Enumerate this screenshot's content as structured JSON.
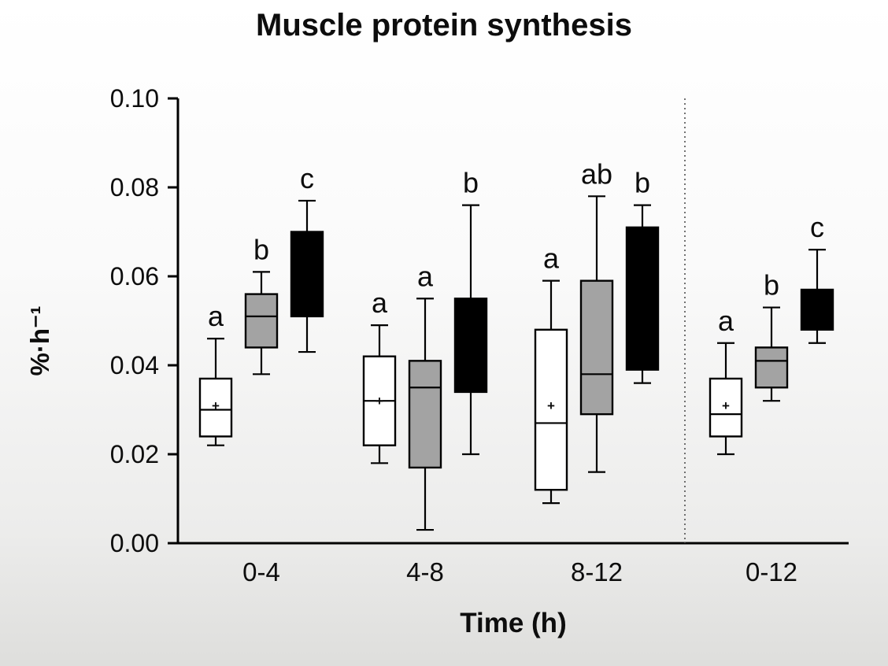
{
  "chart_data": {
    "type": "boxplot",
    "title": "Muscle protein synthesis",
    "xlabel": "Time (h)",
    "ylabel": "%·h⁻¹",
    "ylim": [
      0.0,
      0.1
    ],
    "yticks": [
      0.0,
      0.02,
      0.04,
      0.06,
      0.08,
      0.1
    ],
    "categories": [
      "0-4",
      "4-8",
      "8-12",
      "0-12"
    ],
    "grid": false,
    "legend": "none",
    "separator_after_category": "8-12",
    "series": [
      {
        "name": "white",
        "fill": "#ffffff"
      },
      {
        "name": "gray",
        "fill": "#a3a3a3"
      },
      {
        "name": "black",
        "fill": "#000000"
      }
    ],
    "groups": [
      {
        "category": "0-4",
        "boxes": [
          {
            "series": "white",
            "low": 0.022,
            "q1": 0.024,
            "median": 0.03,
            "mean": 0.031,
            "q3": 0.037,
            "high": 0.046,
            "letter": "a"
          },
          {
            "series": "gray",
            "low": 0.038,
            "q1": 0.044,
            "median": 0.051,
            "mean": null,
            "q3": 0.056,
            "high": 0.061,
            "letter": "b"
          },
          {
            "series": "black",
            "low": 0.043,
            "q1": 0.051,
            "median": null,
            "mean": null,
            "q3": 0.07,
            "high": 0.077,
            "letter": "c"
          }
        ]
      },
      {
        "category": "4-8",
        "boxes": [
          {
            "series": "white",
            "low": 0.018,
            "q1": 0.022,
            "median": 0.032,
            "mean": 0.032,
            "q3": 0.042,
            "high": 0.049,
            "letter": "a"
          },
          {
            "series": "gray",
            "low": 0.003,
            "q1": 0.017,
            "median": 0.035,
            "mean": null,
            "q3": 0.041,
            "high": 0.055,
            "letter": "a"
          },
          {
            "series": "black",
            "low": 0.02,
            "q1": 0.034,
            "median": null,
            "mean": null,
            "q3": 0.055,
            "high": 0.076,
            "letter": "b"
          }
        ]
      },
      {
        "category": "8-12",
        "boxes": [
          {
            "series": "white",
            "low": 0.009,
            "q1": 0.012,
            "median": 0.027,
            "mean": 0.031,
            "q3": 0.048,
            "high": 0.059,
            "letter": "a"
          },
          {
            "series": "gray",
            "low": 0.016,
            "q1": 0.029,
            "median": 0.038,
            "mean": null,
            "q3": 0.059,
            "high": 0.078,
            "letter": "ab"
          },
          {
            "series": "black",
            "low": 0.036,
            "q1": 0.039,
            "median": null,
            "mean": null,
            "q3": 0.071,
            "high": 0.076,
            "letter": "b"
          }
        ]
      },
      {
        "category": "0-12",
        "boxes": [
          {
            "series": "white",
            "low": 0.02,
            "q1": 0.024,
            "median": 0.029,
            "mean": 0.031,
            "q3": 0.037,
            "high": 0.045,
            "letter": "a"
          },
          {
            "series": "gray",
            "low": 0.032,
            "q1": 0.035,
            "median": 0.041,
            "mean": null,
            "q3": 0.044,
            "high": 0.053,
            "letter": "b"
          },
          {
            "series": "black",
            "low": 0.045,
            "q1": 0.048,
            "median": null,
            "mean": null,
            "q3": 0.057,
            "high": 0.066,
            "letter": "c"
          }
        ]
      }
    ]
  }
}
